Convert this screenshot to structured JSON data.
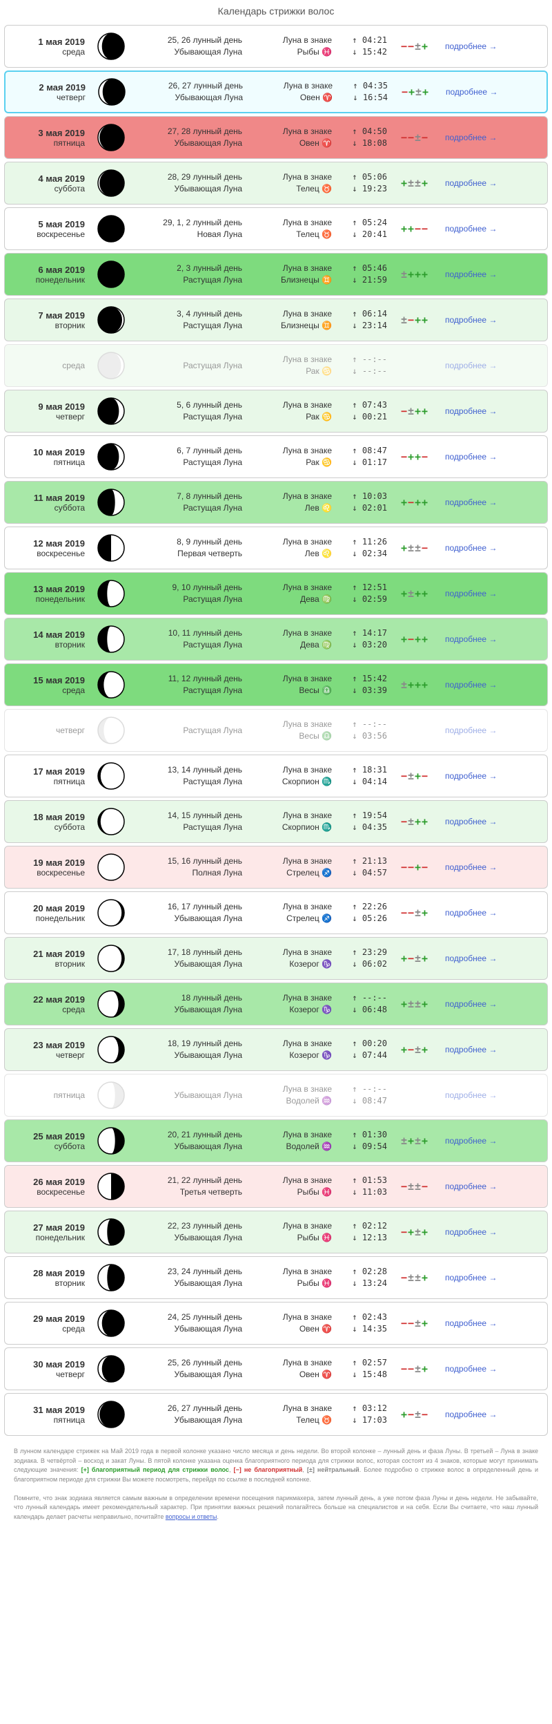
{
  "title": "Календарь стрижки волос",
  "moreLabel": "подробнее →",
  "zodiacLabel": "Луна в знаке",
  "footer": {
    "p1_a": "В лунном календаре стрижек на Май 2019 года в первой колонке указано число месяца и день недели. Во второй колонке – лунный день и фаза Луны. В третьей – Луна в знаке зодиака. В четвёртой – восход и закат Луны. В пятой колонке указана оценка благоприятного периода для стрижки волос, которая состоят из 4 знаков, которые могут принимать следующие значения: ",
    "p1_g": "[+] благоприятный период для стрижки волос",
    "p1_r": "[−] не благоприятный",
    "p1_n": "[±] нейтральный",
    "p1_b": ". Более подробно о стрижке волос в определенный день и благоприятном периоде для стрижки Вы можете посмотреть, перейдя по ссылке в последней колонке.",
    "p2_a": "Помните, что знак зодиака является самым важным в определении времени посещения парикмахера, затем лунный день, а уже потом фаза Луны и день недели. Не забывайте, что лунный календарь имеет рекомендательный характер. При принятии важных решений полагайтесь больше на специалистов и на себя. Если Вы считаете, что наш лунный календарь делает расчеты неправильно, почитайте ",
    "p2_link": "вопросы и ответы"
  },
  "rows": [
    {
      "date": "1 мая 2019",
      "wd": "среда",
      "ld": "25, 26 лунный день",
      "ph": "Убывающая Луна",
      "z": "Рыбы ♓",
      "r": "04:21",
      "s": "15:42",
      "rating": "−−±+",
      "bg": "neutral",
      "moon": "wanc"
    },
    {
      "date": "2 мая 2019",
      "wd": "четверг",
      "ld": "26, 27 лунный день",
      "ph": "Убывающая Луна",
      "z": "Овен ♈",
      "r": "04:35",
      "s": "16:54",
      "rating": "−+±+",
      "bg": "highlight",
      "moon": "wanc"
    },
    {
      "date": "3 мая 2019",
      "wd": "пятница",
      "ld": "27, 28 лунный день",
      "ph": "Убывающая Луна",
      "z": "Овен ♈",
      "r": "04:50",
      "s": "18:08",
      "rating": "−−±−",
      "bg": "red",
      "moon": "wanc2"
    },
    {
      "date": "4 мая 2019",
      "wd": "суббота",
      "ld": "28, 29 лунный день",
      "ph": "Убывающая Луна",
      "z": "Телец ♉",
      "r": "05:06",
      "s": "19:23",
      "rating": "+±±+",
      "bg": "lightgreen",
      "moon": "wanc2"
    },
    {
      "date": "5 мая 2019",
      "wd": "воскресенье",
      "ld": "29, 1, 2 лунный день",
      "ph": "Новая Луна",
      "z": "Телец ♉",
      "r": "05:24",
      "s": "20:41",
      "rating": "++−−",
      "bg": "neutral",
      "moon": "new"
    },
    {
      "date": "6 мая 2019",
      "wd": "понедельник",
      "ld": "2, 3 лунный день",
      "ph": "Растущая Луна",
      "z": "Близнецы ♊",
      "r": "05:46",
      "s": "21:59",
      "rating": "±+++",
      "bg": "darkgreen",
      "moon": "new"
    },
    {
      "date": "7 мая 2019",
      "wd": "вторник",
      "ld": "3, 4 лунный день",
      "ph": "Растущая Луна",
      "z": "Близнецы ♊",
      "r": "06:14",
      "s": "23:14",
      "rating": "±−++",
      "bg": "lightgreen",
      "moon": "waxc1"
    },
    {
      "date": "",
      "wd": "среда",
      "ld": "",
      "ph": "Растущая Луна",
      "z": "Рак ♋",
      "r": "",
      "s": "--:--",
      "rating": "",
      "bg": "lightgreen faded",
      "moon": "waxc1f"
    },
    {
      "date": "9 мая 2019",
      "wd": "четверг",
      "ld": "5, 6 лунный день",
      "ph": "Растущая Луна",
      "z": "Рак ♋",
      "r": "07:43",
      "s": "00:21",
      "rating": "−±++",
      "bg": "lightgreen",
      "moon": "waxc2"
    },
    {
      "date": "10 мая 2019",
      "wd": "пятница",
      "ld": "6, 7 лунный день",
      "ph": "Растущая Луна",
      "z": "Рак ♋",
      "r": "08:47",
      "s": "01:17",
      "rating": "−++−",
      "bg": "neutral",
      "moon": "waxc2"
    },
    {
      "date": "11 мая 2019",
      "wd": "суббота",
      "ld": "7, 8 лунный день",
      "ph": "Растущая Луна",
      "z": "Лев ♌",
      "r": "10:03",
      "s": "02:01",
      "rating": "+−++",
      "bg": "green",
      "moon": "waxc3"
    },
    {
      "date": "12 мая 2019",
      "wd": "воскресенье",
      "ld": "8, 9 лунный день",
      "ph": "Первая четверть",
      "z": "Лев ♌",
      "r": "11:26",
      "s": "02:34",
      "rating": "+±±−",
      "bg": "neutral",
      "moon": "firstq"
    },
    {
      "date": "13 мая 2019",
      "wd": "понедельник",
      "ld": "9, 10 лунный день",
      "ph": "Растущая Луна",
      "z": "Дева ♍",
      "r": "12:51",
      "s": "02:59",
      "rating": "+±++",
      "bg": "darkgreen",
      "moon": "waxg1"
    },
    {
      "date": "14 мая 2019",
      "wd": "вторник",
      "ld": "10, 11 лунный день",
      "ph": "Растущая Луна",
      "z": "Дева ♍",
      "r": "14:17",
      "s": "03:20",
      "rating": "+−++",
      "bg": "green",
      "moon": "waxg1"
    },
    {
      "date": "15 мая 2019",
      "wd": "среда",
      "ld": "11, 12 лунный день",
      "ph": "Растущая Луна",
      "z": "Весы ♎",
      "r": "15:42",
      "s": "03:39",
      "rating": "±+++",
      "bg": "darkgreen",
      "moon": "waxg2"
    },
    {
      "date": "",
      "wd": "четверг",
      "ld": "",
      "ph": "Растущая Луна",
      "z": "Весы ♎",
      "r": "",
      "s": "03:56",
      "rating": "",
      "bg": "neutral faded",
      "moon": "waxg2f"
    },
    {
      "date": "17 мая 2019",
      "wd": "пятница",
      "ld": "13, 14 лунный день",
      "ph": "Растущая Луна",
      "z": "Скорпион ♏",
      "r": "18:31",
      "s": "04:14",
      "rating": "−±+−",
      "bg": "neutral",
      "moon": "waxg3"
    },
    {
      "date": "18 мая 2019",
      "wd": "суббота",
      "ld": "14, 15 лунный день",
      "ph": "Растущая Луна",
      "z": "Скорпион ♏",
      "r": "19:54",
      "s": "04:35",
      "rating": "−±++",
      "bg": "lightgreen",
      "moon": "waxg3"
    },
    {
      "date": "19 мая 2019",
      "wd": "воскресенье",
      "ld": "15, 16 лунный день",
      "ph": "Полная Луна",
      "z": "Стрелец ♐",
      "r": "21:13",
      "s": "04:57",
      "rating": "−−+−",
      "bg": "lightpink",
      "moon": "full"
    },
    {
      "date": "20 мая 2019",
      "wd": "понедельник",
      "ld": "16, 17 лунный день",
      "ph": "Убывающая Луна",
      "z": "Стрелец ♐",
      "r": "22:26",
      "s": "05:26",
      "rating": "−−±+",
      "bg": "neutral",
      "moon": "wang1"
    },
    {
      "date": "21 мая 2019",
      "wd": "вторник",
      "ld": "17, 18 лунный день",
      "ph": "Убывающая Луна",
      "z": "Козерог ♑",
      "r": "23:29",
      "s": "06:02",
      "rating": "+−±+",
      "bg": "lightgreen",
      "moon": "wang1"
    },
    {
      "date": "22 мая 2019",
      "wd": "среда",
      "ld": "18 лунный день",
      "ph": "Убывающая Луна",
      "z": "Козерог ♑",
      "r": "--:--",
      "s": "06:48",
      "rating": "+±±+",
      "bg": "green",
      "moon": "wang2"
    },
    {
      "date": "23 мая 2019",
      "wd": "четверг",
      "ld": "18, 19 лунный день",
      "ph": "Убывающая Луна",
      "z": "Козерог ♑",
      "r": "00:20",
      "s": "07:44",
      "rating": "+−±+",
      "bg": "lightgreen",
      "moon": "wang2"
    },
    {
      "date": "",
      "wd": "пятница",
      "ld": "",
      "ph": "Убывающая Луна",
      "z": "Водолей ♒",
      "r": "",
      "s": "08:47",
      "rating": "",
      "bg": "neutral faded",
      "moon": "wang3f"
    },
    {
      "date": "25 мая 2019",
      "wd": "суббота",
      "ld": "20, 21 лунный день",
      "ph": "Убывающая Луна",
      "z": "Водолей ♒",
      "r": "01:30",
      "s": "09:54",
      "rating": "±+±+",
      "bg": "green",
      "moon": "wang3"
    },
    {
      "date": "26 мая 2019",
      "wd": "воскресенье",
      "ld": "21, 22 лунный день",
      "ph": "Третья четверть",
      "z": "Рыбы ♓",
      "r": "01:53",
      "s": "11:03",
      "rating": "−±±−",
      "bg": "lightpink",
      "moon": "lastq"
    },
    {
      "date": "27 мая 2019",
      "wd": "понедельник",
      "ld": "22, 23 лунный день",
      "ph": "Убывающая Луна",
      "z": "Рыбы ♓",
      "r": "02:12",
      "s": "12:13",
      "rating": "−+±+",
      "bg": "lightgreen",
      "moon": "wanc3"
    },
    {
      "date": "28 мая 2019",
      "wd": "вторник",
      "ld": "23, 24 лунный день",
      "ph": "Убывающая Луна",
      "z": "Рыбы ♓",
      "r": "02:28",
      "s": "13:24",
      "rating": "−±±+",
      "bg": "neutral",
      "moon": "wanc3"
    },
    {
      "date": "29 мая 2019",
      "wd": "среда",
      "ld": "24, 25 лунный день",
      "ph": "Убывающая Луна",
      "z": "Овен ♈",
      "r": "02:43",
      "s": "14:35",
      "rating": "−−±+",
      "bg": "neutral",
      "moon": "wanc"
    },
    {
      "date": "30 мая 2019",
      "wd": "четверг",
      "ld": "25, 26 лунный день",
      "ph": "Убывающая Луна",
      "z": "Овен ♈",
      "r": "02:57",
      "s": "15:48",
      "rating": "−−±+",
      "bg": "neutral",
      "moon": "wanc"
    },
    {
      "date": "31 мая 2019",
      "wd": "пятница",
      "ld": "26, 27 лунный день",
      "ph": "Убывающая Луна",
      "z": "Телец ♉",
      "r": "03:12",
      "s": "17:03",
      "rating": "+−±−",
      "bg": "neutral",
      "moon": "wanc2"
    }
  ],
  "moonShapes": {
    "new": {
      "fill": "#000",
      "cresc": null
    },
    "full": {
      "fill": "#fff",
      "cresc": null
    },
    "firstq": {
      "fill": "half-right",
      "cresc": null
    },
    "lastq": {
      "fill": "half-left",
      "cresc": null
    },
    "waxc1": {
      "fill": "#000",
      "cresc": {
        "side": "right",
        "w": 4
      }
    },
    "waxc1f": {
      "fill": "#fff",
      "cresc": {
        "side": "right",
        "w": 6,
        "outline": true
      }
    },
    "waxc2": {
      "fill": "#000",
      "cresc": {
        "side": "right",
        "w": 8
      }
    },
    "waxc3": {
      "fill": "#000",
      "cresc": {
        "side": "right",
        "w": 12
      }
    },
    "waxg1": {
      "fill": "#fff",
      "cresc": {
        "side": "left",
        "w": 12,
        "dark": true
      }
    },
    "waxg2": {
      "fill": "#fff",
      "cresc": {
        "side": "left",
        "w": 8,
        "dark": true
      }
    },
    "waxg2f": {
      "fill": "#fff",
      "cresc": {
        "side": "left",
        "w": 8,
        "outline": true
      }
    },
    "waxg3": {
      "fill": "#fff",
      "cresc": {
        "side": "left",
        "w": 4,
        "dark": true
      }
    },
    "wang1": {
      "fill": "#fff",
      "cresc": {
        "side": "right",
        "w": 4,
        "dark": true
      }
    },
    "wang2": {
      "fill": "#fff",
      "cresc": {
        "side": "right",
        "w": 8,
        "dark": true
      }
    },
    "wang3": {
      "fill": "#fff",
      "cresc": {
        "side": "right",
        "w": 12,
        "dark": true
      }
    },
    "wang3f": {
      "fill": "#fff",
      "cresc": {
        "side": "right",
        "w": 12,
        "outline": true
      }
    },
    "wanc": {
      "fill": "#000",
      "cresc": {
        "side": "left",
        "w": 4
      }
    },
    "wanc2": {
      "fill": "#000",
      "cresc": {
        "side": "left",
        "w": 2
      }
    },
    "wanc3": {
      "fill": "#000",
      "cresc": {
        "side": "left",
        "w": 10
      }
    }
  }
}
